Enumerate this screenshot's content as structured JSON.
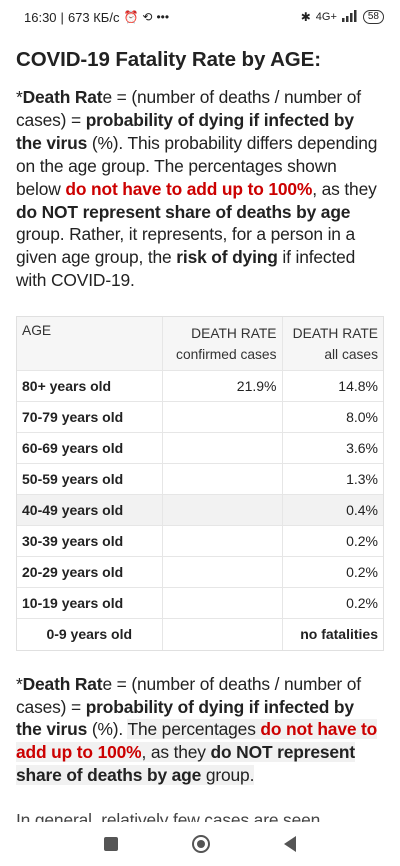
{
  "status_bar": {
    "time": "16:30",
    "data_rate": "673 КБ/с",
    "alarm_icon": "alarm-icon",
    "more": "•••",
    "bluetooth_icon": "bluetooth-icon",
    "network": "4G+",
    "battery": "58"
  },
  "article": {
    "title": "COVID-19 Fatality Rate by AGE:",
    "intro": {
      "p1": "*",
      "p2": "Death Rat",
      "p3": "e",
      "p4": " = (number of deaths / number of cases) = ",
      "p5": "probability of dying if infected by the virus",
      "p6": " (%). This probability differs depending on the age group. The percentages shown below ",
      "p7": "do not have to add up to 100%",
      "p8": ", as they ",
      "p9": "do NOT represent share of deaths by age",
      "p10": " group. Rather, it represents, for a person in a given age group, the ",
      "p11": "risk of dying",
      "p12": " if infected with COVID-19."
    },
    "table": {
      "headers": {
        "age": "AGE",
        "confirmed_line1": "DEATH RATE",
        "confirmed_line2": "confirmed cases",
        "all_line1": "DEATH RATE",
        "all_line2": "all cases"
      },
      "rows": [
        {
          "age": "80+ years old",
          "confirmed": "21.9%",
          "all": "14.8%"
        },
        {
          "age": "70-79 years old",
          "confirmed": "",
          "all": "8.0%"
        },
        {
          "age": "60-69 years old",
          "confirmed": "",
          "all": "3.6%"
        },
        {
          "age": "50-59 years old",
          "confirmed": "",
          "all": "1.3%"
        },
        {
          "age": "40-49 years old",
          "confirmed": "",
          "all": "0.4%"
        },
        {
          "age": "30-39 years old",
          "confirmed": "",
          "all": "0.2%"
        },
        {
          "age": "20-29 years old",
          "confirmed": "",
          "all": "0.2%"
        },
        {
          "age": "10-19 years old",
          "confirmed": "",
          "all": "0.2%"
        },
        {
          "age": "0-9 years old",
          "confirmed": "",
          "all": "no fatalities"
        }
      ]
    },
    "summary": {
      "p1": "*",
      "p2": "Death Rat",
      "p3": "e",
      "p4": " = (number of deaths / number of cases) = ",
      "p5": "probability of dying if infected by the virus",
      "p6": " (%). ",
      "p7": "The percentages ",
      "p8": "do not have to add up to 100%",
      "p9": ", as they ",
      "p10": "do NOT represent share of deaths by age",
      "p11": " group."
    },
    "cutoff_text": "In general, relatively few cases are seen"
  },
  "nav": {
    "recents": "recents-square-icon",
    "home": "home-circle-icon",
    "back": "back-triangle-icon"
  }
}
